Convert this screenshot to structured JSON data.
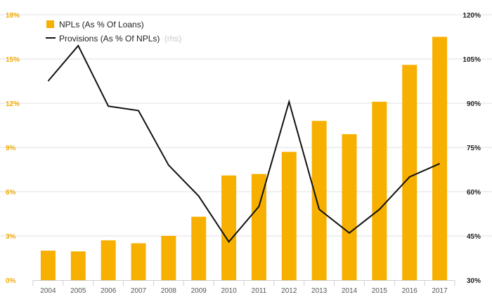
{
  "chart_data": {
    "type": "bar+line",
    "categories": [
      "2004",
      "2005",
      "2006",
      "2007",
      "2008",
      "2009",
      "2010",
      "2011",
      "2012",
      "2013",
      "2014",
      "2015",
      "2016",
      "2017"
    ],
    "series": [
      {
        "name": "NPLs (As % Of Loans)",
        "type": "bar",
        "axis": "left",
        "color": "#f7b000",
        "values": [
          2.0,
          1.95,
          2.7,
          2.5,
          3.0,
          4.3,
          7.1,
          7.2,
          8.7,
          10.8,
          9.9,
          12.1,
          14.6,
          16.5
        ]
      },
      {
        "name": "Provisions (As % Of NPLs)",
        "suffix": "(rhs)",
        "type": "line",
        "axis": "right",
        "color": "#111111",
        "values": [
          97.5,
          109.5,
          89.0,
          87.5,
          69.0,
          58.5,
          43.0,
          55.0,
          90.5,
          54.0,
          46.0,
          54.0,
          65.0,
          69.5
        ]
      }
    ],
    "y_left": {
      "min": 0,
      "max": 18,
      "ticks": [
        0,
        3,
        6,
        9,
        12,
        15,
        18
      ],
      "labels": [
        "0%",
        "3%",
        "6%",
        "9%",
        "12%",
        "15%",
        "18%"
      ]
    },
    "y_right": {
      "min": 30,
      "max": 120,
      "ticks": [
        30,
        45,
        60,
        75,
        90,
        105,
        120
      ],
      "labels": [
        "30%",
        "45%",
        "60%",
        "75%",
        "90%",
        "105%",
        "120%"
      ]
    },
    "grid": true,
    "legend_position": "top-left",
    "gridline_color": "#e2e2e2",
    "axis_text_left_color": "#f2a900"
  }
}
